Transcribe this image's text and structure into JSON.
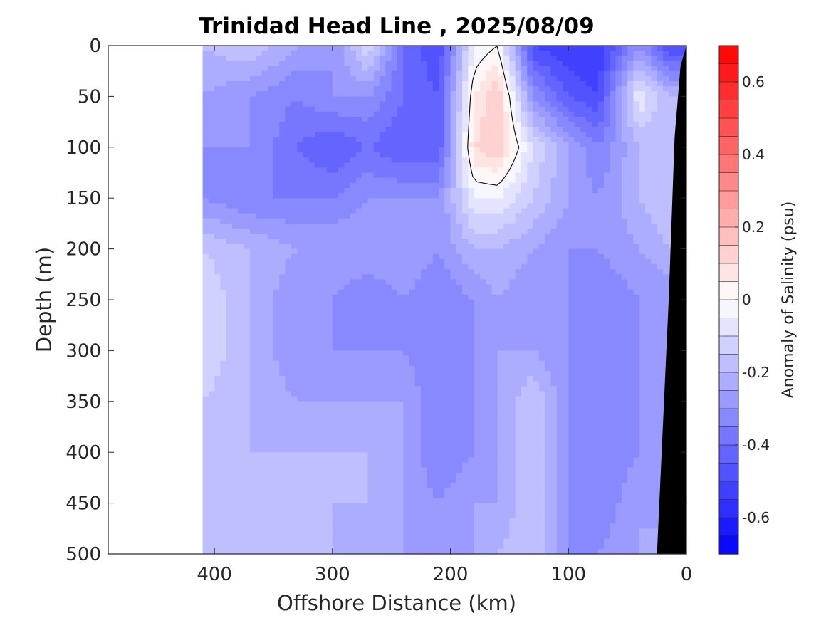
{
  "chart_data": {
    "type": "contour",
    "title": "Trinidad Head Line , 2025/08/09",
    "xlabel": "Offshore Distance (km)",
    "ylabel": "Depth (m)",
    "xlim": [
      490,
      0
    ],
    "ylim": [
      0,
      500
    ],
    "x_direction": "reversed",
    "y_direction": "reversed (depth increases downward)",
    "x_ticks": [
      400,
      300,
      200,
      100,
      0
    ],
    "y_ticks": [
      0,
      50,
      100,
      150,
      200,
      250,
      300,
      350,
      400,
      450,
      500
    ],
    "colorbar": {
      "label": "Anomaly of Salinity (psu)",
      "range": [
        -0.7,
        0.7
      ],
      "step": 0.05,
      "ticks": [
        -0.6,
        -0.4,
        -0.2,
        0,
        0.2,
        0.4,
        0.6
      ],
      "colormap": "blue-white-red",
      "neg_color": "#0000ff",
      "zero_color": "#ffffff",
      "pos_color": "#ff0000"
    },
    "data_extent_x": [
      0,
      410
    ],
    "zero_contour_line": true,
    "bathymetry_color": "#000000",
    "sections": [
      {
        "x": 410,
        "values": [
          -0.2,
          -0.25,
          -0.3,
          -0.3,
          -0.15,
          -0.1,
          -0.1,
          -0.15,
          -0.15,
          -0.15,
          -0.15
        ]
      },
      {
        "x": 370,
        "values": [
          -0.15,
          -0.3,
          -0.3,
          -0.35,
          -0.2,
          -0.2,
          -0.2,
          -0.2,
          -0.2,
          -0.2,
          -0.2
        ]
      },
      {
        "x": 330,
        "values": [
          -0.25,
          -0.35,
          -0.4,
          -0.35,
          -0.25,
          -0.3,
          -0.3,
          -0.25,
          -0.2,
          -0.2,
          -0.2
        ]
      },
      {
        "x": 300,
        "values": [
          -0.3,
          -0.3,
          -0.45,
          -0.35,
          -0.25,
          -0.3,
          -0.3,
          -0.25,
          -0.2,
          -0.2,
          -0.2
        ]
      },
      {
        "x": 270,
        "values": [
          -0.1,
          -0.3,
          -0.4,
          -0.3,
          -0.25,
          -0.35,
          -0.3,
          -0.25,
          -0.2,
          -0.2,
          -0.25
        ]
      },
      {
        "x": 240,
        "values": [
          -0.4,
          -0.4,
          -0.45,
          -0.3,
          -0.25,
          -0.3,
          -0.3,
          -0.25,
          -0.25,
          -0.25,
          -0.25
        ]
      },
      {
        "x": 210,
        "values": [
          -0.5,
          -0.45,
          -0.45,
          -0.3,
          -0.3,
          -0.35,
          -0.35,
          -0.35,
          -0.35,
          -0.3,
          -0.3
        ]
      },
      {
        "x": 180,
        "values": [
          -0.05,
          0.05,
          0.1,
          -0.05,
          -0.2,
          -0.3,
          -0.3,
          -0.3,
          -0.3,
          -0.25,
          -0.25
        ]
      },
      {
        "x": 160,
        "values": [
          0,
          0.15,
          0.15,
          -0.05,
          -0.2,
          -0.25,
          -0.25,
          -0.25,
          -0.25,
          -0.25,
          -0.2
        ]
      },
      {
        "x": 130,
        "values": [
          -0.5,
          -0.3,
          -0.1,
          -0.15,
          -0.25,
          -0.3,
          -0.25,
          -0.15,
          -0.15,
          -0.15,
          -0.15
        ]
      },
      {
        "x": 100,
        "values": [
          -0.55,
          -0.45,
          -0.25,
          -0.25,
          -0.3,
          -0.3,
          -0.3,
          -0.3,
          -0.3,
          -0.3,
          -0.3
        ]
      },
      {
        "x": 75,
        "values": [
          -0.55,
          -0.5,
          -0.35,
          -0.3,
          -0.3,
          -0.35,
          -0.35,
          -0.35,
          -0.35,
          -0.35,
          -0.3
        ]
      },
      {
        "x": 40,
        "values": [
          -0.3,
          -0.05,
          -0.2,
          -0.2,
          -0.25,
          -0.3,
          -0.3,
          -0.3,
          -0.3,
          -0.25,
          -0.25
        ]
      },
      {
        "x": 15,
        "values": [
          -0.5,
          -0.2,
          -0.2,
          -0.15,
          -0.2,
          -0.3,
          -0.3,
          -0.3,
          -0.3,
          -0.3,
          -0.2
        ]
      }
    ],
    "section_depths": [
      0,
      50,
      100,
      150,
      200,
      250,
      300,
      350,
      400,
      450,
      500
    ],
    "bathymetry": [
      {
        "x": 0,
        "depth": 0
      },
      {
        "x": 5,
        "depth": 20
      },
      {
        "x": 10,
        "depth": 90
      },
      {
        "x": 15,
        "depth": 250
      },
      {
        "x": 25,
        "depth": 500
      }
    ]
  }
}
